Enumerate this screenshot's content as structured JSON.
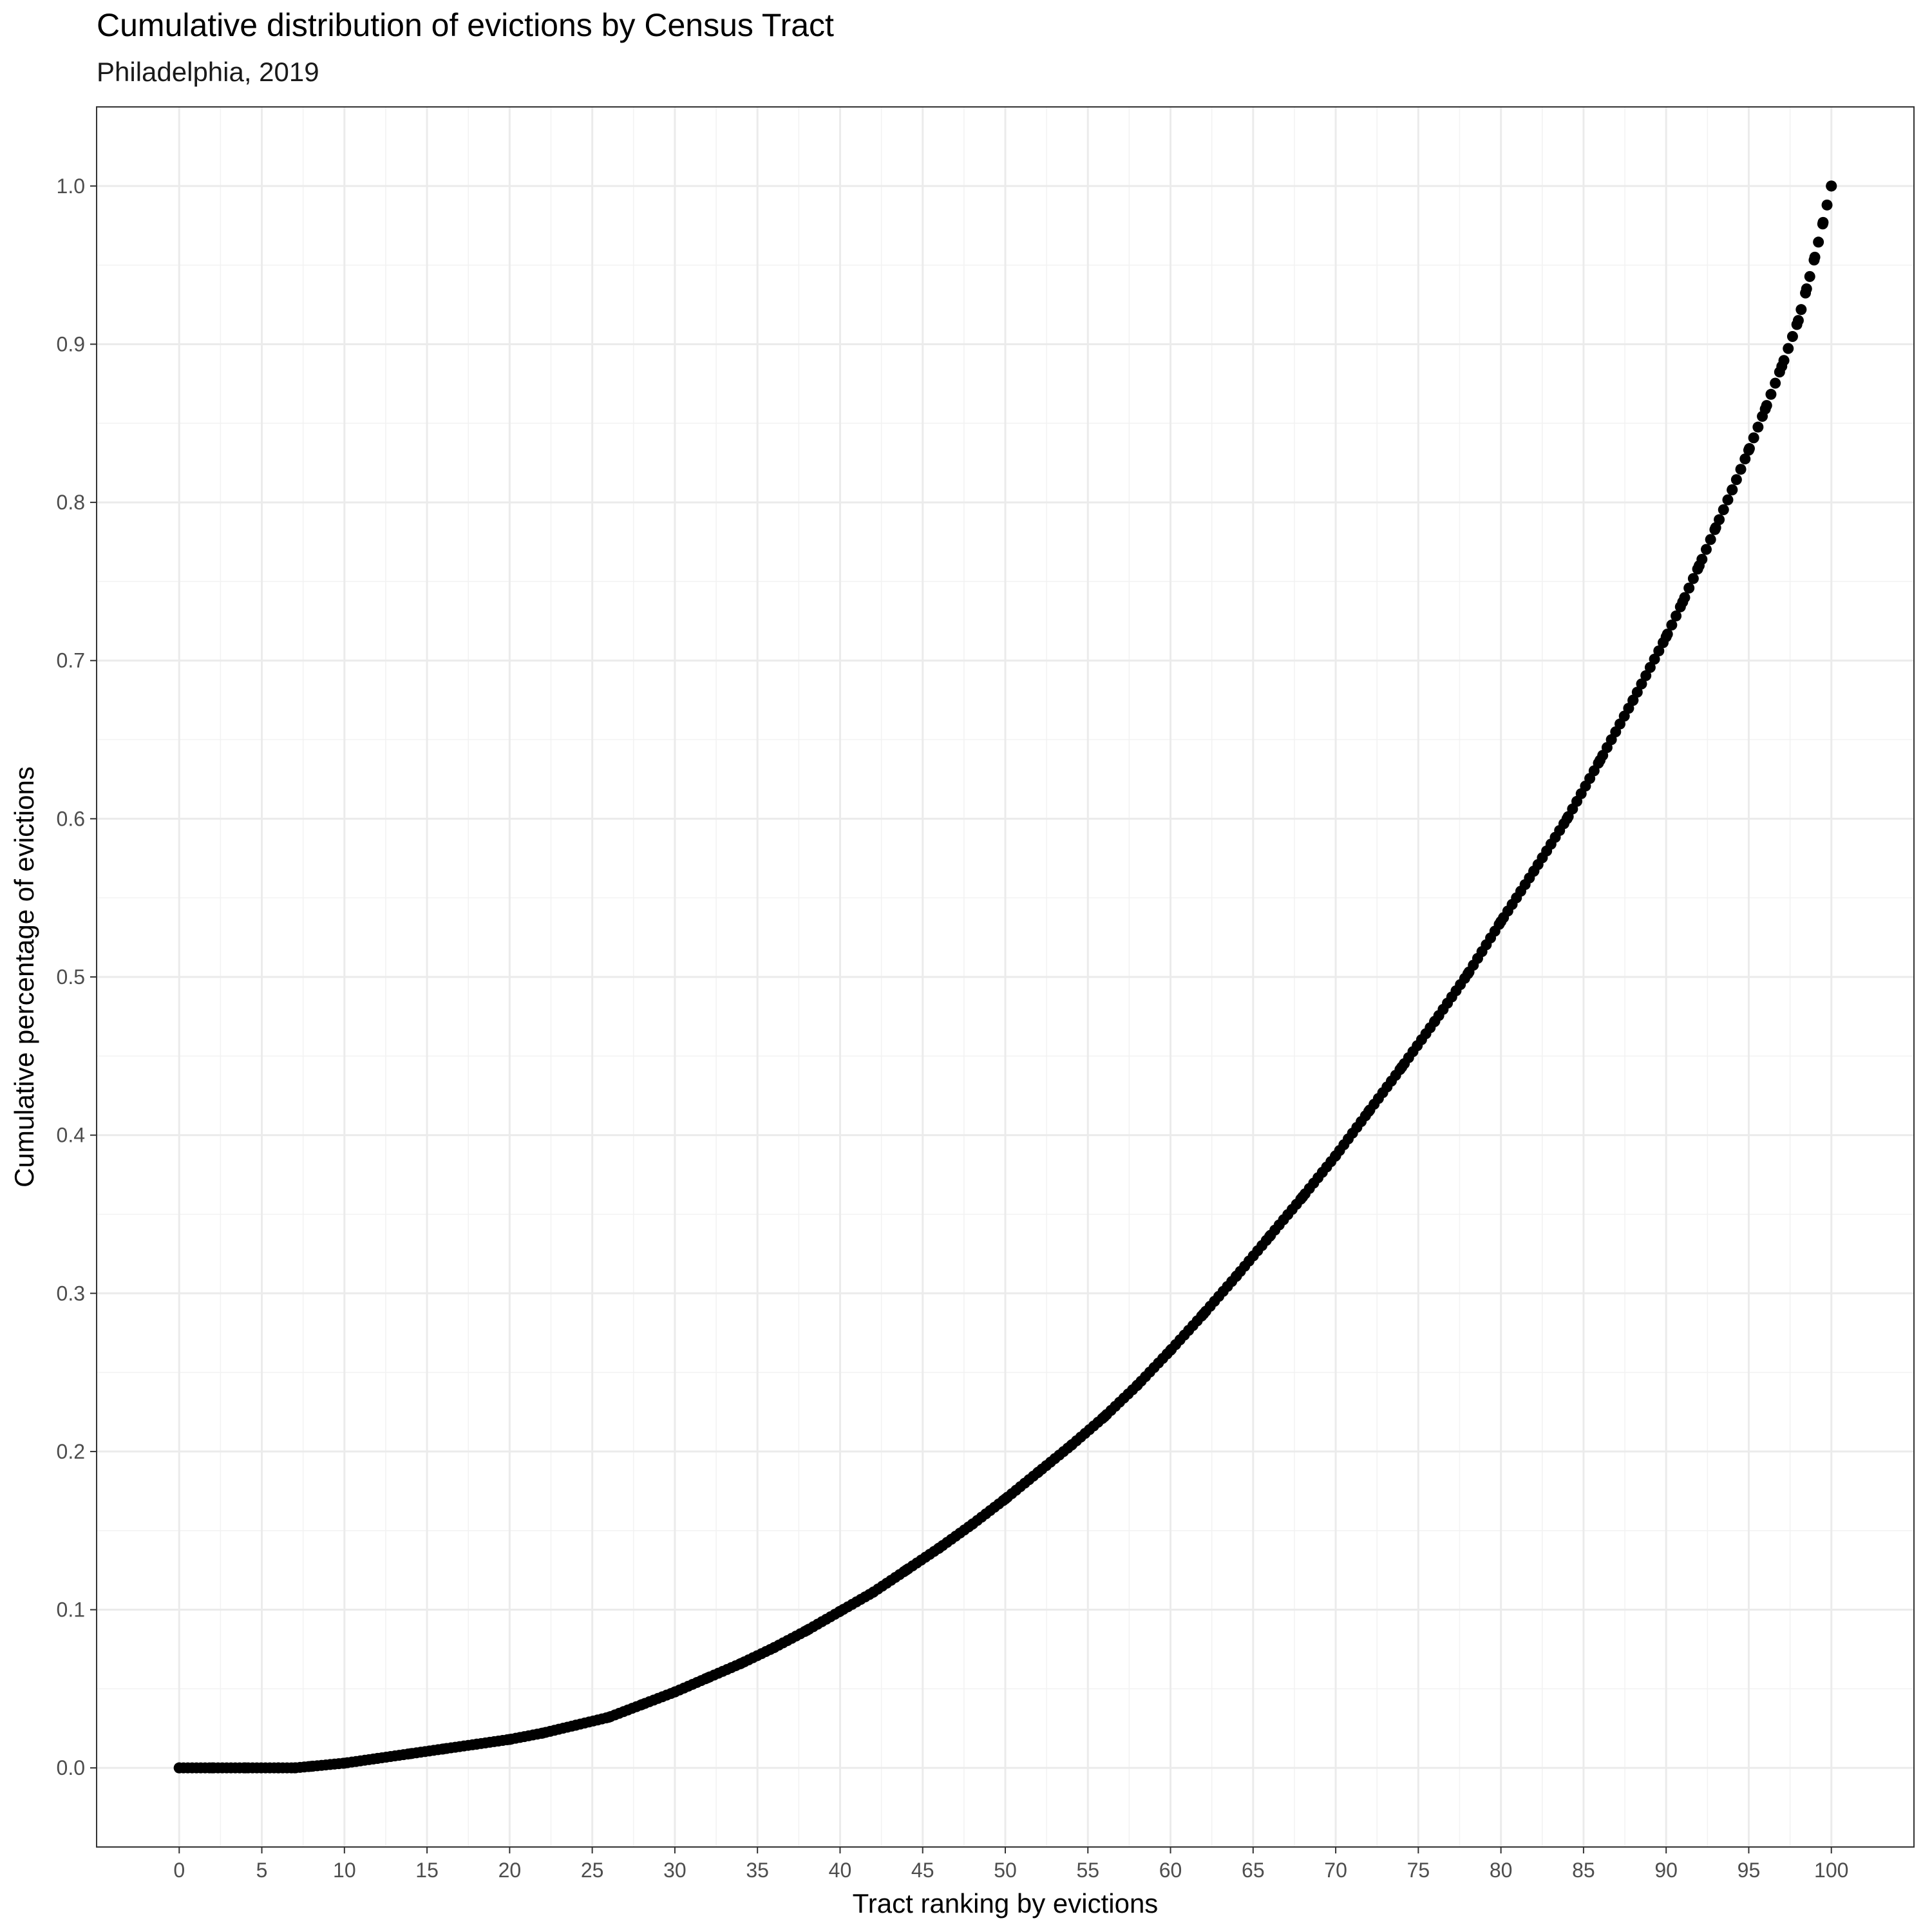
{
  "chart_data": {
    "type": "scatter",
    "title": "Cumulative distribution of evictions by Census Tract",
    "subtitle": "Philadelphia, 2019",
    "xlabel": "Tract ranking by evictions",
    "ylabel": "Cumulative percentage of evictions",
    "xlim": [
      -5,
      105
    ],
    "ylim": [
      -0.05,
      1.05
    ],
    "x_ticks": [
      0,
      5,
      10,
      15,
      20,
      25,
      30,
      35,
      40,
      45,
      50,
      55,
      60,
      65,
      70,
      75,
      80,
      85,
      90,
      95,
      100
    ],
    "y_ticks": [
      0.0,
      0.1,
      0.2,
      0.3,
      0.4,
      0.5,
      0.6,
      0.7,
      0.8,
      0.9,
      1.0
    ],
    "x_tick_labels": [
      "0",
      "5",
      "10",
      "15",
      "20",
      "25",
      "30",
      "35",
      "40",
      "45",
      "50",
      "55",
      "60",
      "65",
      "70",
      "75",
      "80",
      "85",
      "90",
      "95",
      "100"
    ],
    "y_tick_labels": [
      "0.0",
      "0.1",
      "0.2",
      "0.3",
      "0.4",
      "0.5",
      "0.6",
      "0.7",
      "0.8",
      "0.9",
      "1.0"
    ],
    "grid": true,
    "point_color": "#000000",
    "series": [
      {
        "x": [
          0,
          2,
          4,
          6,
          7,
          8,
          10,
          12,
          14,
          16,
          18,
          20,
          22,
          24,
          26,
          28,
          30,
          32,
          34,
          36,
          38,
          40,
          42,
          44,
          46,
          48,
          50,
          52,
          54,
          56,
          58,
          60,
          62,
          64,
          66,
          68,
          70,
          72,
          74,
          76,
          78,
          80,
          82,
          84,
          86,
          88,
          90,
          91,
          92,
          93,
          94,
          95,
          96,
          97,
          98,
          98.5,
          99,
          99.5,
          100
        ],
        "y": [
          0,
          0,
          0,
          0,
          0,
          0.001,
          0.003,
          0.006,
          0.009,
          0.012,
          0.015,
          0.018,
          0.022,
          0.027,
          0.032,
          0.04,
          0.048,
          0.057,
          0.066,
          0.076,
          0.087,
          0.099,
          0.111,
          0.125,
          0.139,
          0.154,
          0.17,
          0.187,
          0.204,
          0.222,
          0.242,
          0.264,
          0.287,
          0.311,
          0.336,
          0.361,
          0.387,
          0.415,
          0.443,
          0.472,
          0.502,
          0.535,
          0.567,
          0.6,
          0.637,
          0.675,
          0.715,
          0.737,
          0.76,
          0.784,
          0.808,
          0.833,
          0.859,
          0.886,
          0.915,
          0.935,
          0.955,
          0.977,
          1.0
        ]
      }
    ]
  }
}
